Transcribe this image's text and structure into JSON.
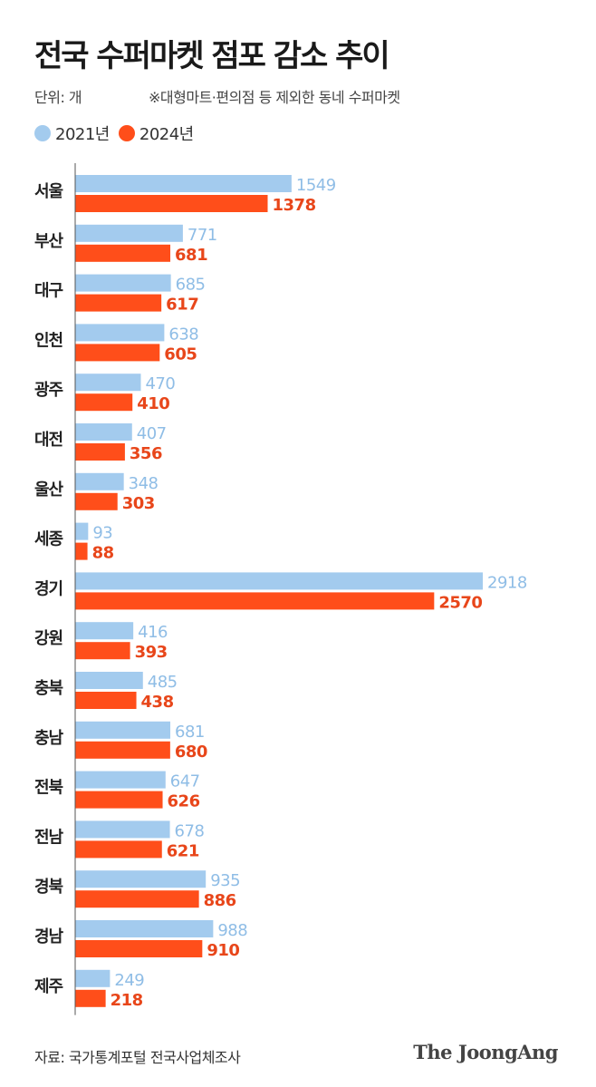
{
  "title": "전국 수퍼마켓 점포 감소 추이",
  "unit_label": "단위: 개",
  "note": "※대형마트·편의점 등 제외한 동네 수퍼마켓",
  "source": "자료: 국가통계포털 전국사업체조사",
  "brand": "The JoongAng",
  "colors": {
    "series_2021": "#a3cbee",
    "series_2024": "#ff4e1a",
    "axis": "#555555",
    "label_2021": "#8fbde6",
    "label_2024": "#e8461a"
  },
  "chart_data": {
    "type": "bar",
    "orientation": "horizontal",
    "categories": [
      "서울",
      "부산",
      "대구",
      "인천",
      "광주",
      "대전",
      "울산",
      "세종",
      "경기",
      "강원",
      "충북",
      "충남",
      "전북",
      "전남",
      "경북",
      "경남",
      "제주"
    ],
    "series": [
      {
        "name": "2021년",
        "values": [
          1549,
          771,
          685,
          638,
          470,
          407,
          348,
          93,
          2918,
          416,
          485,
          681,
          647,
          678,
          935,
          988,
          249
        ]
      },
      {
        "name": "2024년",
        "values": [
          1378,
          681,
          617,
          605,
          410,
          356,
          303,
          88,
          2570,
          393,
          438,
          680,
          626,
          621,
          886,
          910,
          218
        ]
      }
    ],
    "xlim": [
      0,
      2918
    ],
    "grid": false,
    "legend": "top-left"
  }
}
